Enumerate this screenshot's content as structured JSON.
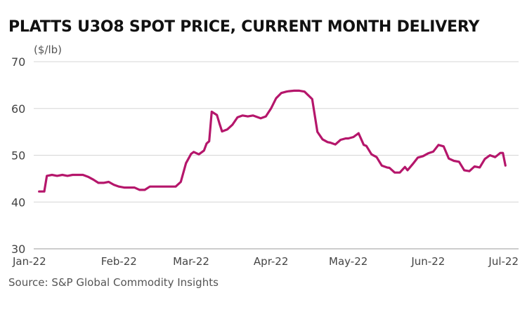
{
  "chart_data": {
    "type": "line",
    "title": "PLATTS U3O8 SPOT PRICE, CURRENT MONTH DELIVERY",
    "unit_label": "($/lb)",
    "source": "Source: S&P Global Commodity Insights",
    "xlabel": "",
    "ylabel": "",
    "ylim": [
      30,
      70
    ],
    "yticks": [
      30,
      40,
      50,
      60,
      70
    ],
    "xticks": [
      {
        "label": "Jan-22",
        "x": 0
      },
      {
        "label": "Feb-22",
        "x": 31
      },
      {
        "label": "Mar-22",
        "x": 59
      },
      {
        "label": "Apr-22",
        "x": 90
      },
      {
        "label": "May-22",
        "x": 120
      },
      {
        "label": "Jun-22",
        "x": 151
      },
      {
        "label": "Jul-22",
        "x": 181
      }
    ],
    "xlim": [
      -1,
      182
    ],
    "grid": "horizontal",
    "line_color": "#b5166b",
    "series": [
      {
        "x": [
          0,
          2,
          3,
          5,
          7,
          9,
          11,
          13,
          15,
          17,
          19,
          21,
          23,
          25,
          27,
          29,
          31,
          33,
          35,
          37,
          39,
          41,
          43,
          45,
          47,
          49,
          51,
          53,
          55,
          57,
          59,
          60,
          62,
          64,
          65,
          66,
          67,
          69,
          70,
          71,
          72,
          73,
          75,
          77,
          79,
          81,
          83,
          84,
          86,
          88,
          90,
          92,
          94,
          96,
          97,
          99,
          101,
          103,
          106,
          108,
          110,
          112,
          113,
          115,
          117,
          119,
          120,
          122,
          124,
          126,
          127,
          129,
          131,
          133,
          135,
          136,
          138,
          140,
          142,
          143,
          145,
          147,
          149,
          151,
          153,
          155,
          157,
          159,
          161,
          163,
          165,
          167,
          169,
          171,
          173,
          175,
          177,
          179,
          180,
          181
        ],
        "y": [
          42.25,
          42.25,
          45.6,
          45.8,
          45.6,
          45.8,
          45.6,
          45.8,
          45.8,
          45.8,
          45.4,
          44.8,
          44.1,
          44.1,
          44.3,
          43.7,
          43.3,
          43.1,
          43.1,
          43.1,
          42.6,
          42.6,
          43.3,
          43.3,
          43.3,
          43.3,
          43.3,
          43.3,
          44.3,
          48.3,
          50.3,
          50.7,
          50.2,
          51.0,
          52.5,
          53.0,
          59.3,
          58.6,
          56.8,
          55.1,
          55.3,
          55.5,
          56.5,
          58.1,
          58.5,
          58.3,
          58.5,
          58.3,
          57.9,
          58.3,
          60.0,
          62.2,
          63.3,
          63.6,
          63.7,
          63.8,
          63.8,
          63.6,
          62.0,
          55.0,
          53.4,
          52.8,
          52.7,
          52.3,
          53.3,
          53.6,
          53.6,
          53.9,
          54.7,
          52.2,
          52.0,
          50.2,
          49.6,
          47.8,
          47.4,
          47.3,
          46.3,
          46.3,
          47.5,
          46.8,
          48.1,
          49.5,
          49.8,
          50.4,
          50.8,
          52.2,
          51.9,
          49.3,
          48.8,
          48.6,
          46.8,
          46.6,
          47.6,
          47.4,
          49.2,
          50.0,
          49.6,
          50.5,
          50.5,
          47.8
        ]
      }
    ]
  }
}
